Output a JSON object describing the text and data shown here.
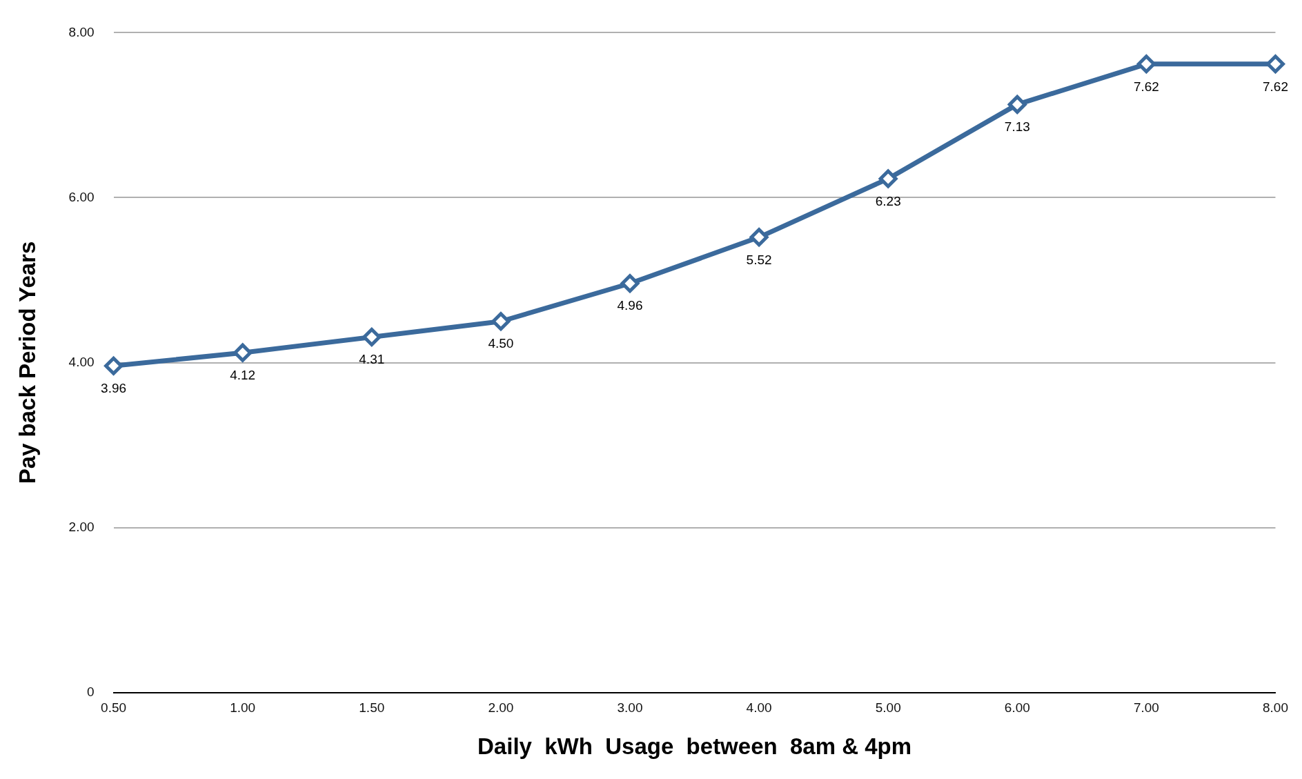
{
  "chart_data": {
    "type": "line",
    "xlabel": "Daily  kWh  Usage  between  8am & 4pm",
    "ylabel": "Pay back Period Years",
    "categories": [
      "0.50",
      "1.00",
      "1.50",
      "2.00",
      "3.00",
      "4.00",
      "5.00",
      "6.00",
      "7.00",
      "8.00"
    ],
    "series": [
      {
        "color": "#3b6a9c",
        "values": [
          3.96,
          4.12,
          4.31,
          4.5,
          4.96,
          5.52,
          6.23,
          7.13,
          7.62,
          7.62
        ],
        "value_labels": [
          "3.96",
          "4.12",
          "4.31",
          "4.50",
          "4.96",
          "5.52",
          "6.23",
          "7.13",
          "7.62",
          "7.62"
        ]
      }
    ],
    "ylim": [
      0,
      8
    ],
    "yticks": [
      0,
      {
        "value": 2,
        "label": "2.00"
      },
      {
        "value": 4,
        "label": "4.00"
      },
      {
        "value": 6,
        "label": "6.00"
      },
      {
        "value": 8,
        "label": "8.00"
      }
    ],
    "grid": "y",
    "marker": "diamond",
    "line_style": "solid",
    "legend": false
  }
}
